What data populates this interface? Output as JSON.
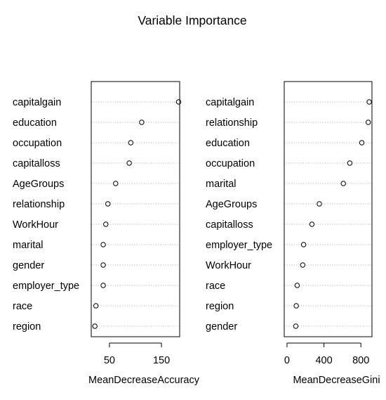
{
  "chart_data": {
    "type": "dotchart",
    "title": "Variable Importance",
    "panels": [
      {
        "xlabel": "MeanDecreaseAccuracy",
        "xlim": [
          15,
          185
        ],
        "xticks": [
          50,
          150
        ],
        "categories": [
          "capitalgain",
          "education",
          "occupation",
          "capitalloss",
          "AgeGroups",
          "relationship",
          "WorkHour",
          "marital",
          "gender",
          "employer_type",
          "race",
          "region"
        ],
        "values": [
          183,
          112,
          91,
          88,
          62,
          47,
          43,
          38,
          38,
          38,
          24,
          22
        ]
      },
      {
        "xlabel": "MeanDecreaseGini",
        "xlim": [
          -30,
          920
        ],
        "xticks": [
          0,
          400,
          800
        ],
        "categories": [
          "capitalgain",
          "relationship",
          "education",
          "occupation",
          "marital",
          "AgeGroups",
          "capitalloss",
          "employer_type",
          "WorkHour",
          "race",
          "region",
          "gender"
        ],
        "values": [
          890,
          880,
          810,
          680,
          610,
          350,
          270,
          180,
          170,
          110,
          100,
          95
        ]
      }
    ]
  }
}
